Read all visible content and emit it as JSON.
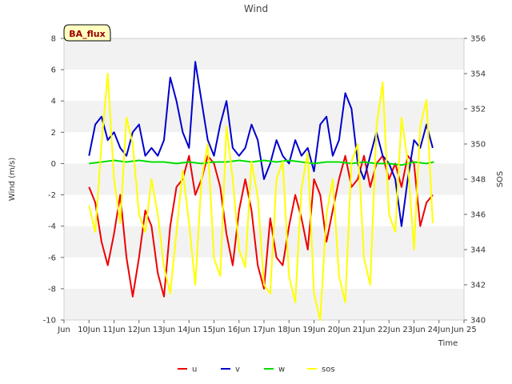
{
  "chart_data": {
    "type": "line",
    "title": "Wind",
    "xlabel": "Time",
    "ylabel": "Wind (m/s)",
    "y2label": "SOS",
    "xlim": [
      9.0,
      25.0
    ],
    "ylim": [
      -10,
      8
    ],
    "y2lim": [
      340,
      356
    ],
    "x_ticks": [
      9,
      10,
      11,
      12,
      13,
      14,
      15,
      16,
      17,
      18,
      19,
      20,
      21,
      22,
      23,
      24,
      25
    ],
    "x_tick_labels": [
      "Jun",
      "10Jun",
      "11Jun",
      "12Jun",
      "13Jun",
      "14Jun",
      "15Jun",
      "16Jun",
      "17Jun",
      "18Jun",
      "19Jun",
      "20Jun",
      "21Jun",
      "22Jun",
      "23Jun",
      "24Jun",
      "Jun 25"
    ],
    "y_ticks": [
      -10,
      -8,
      -6,
      -4,
      -2,
      0,
      2,
      4,
      6,
      8
    ],
    "y_tick_labels": [
      "-10",
      "-8",
      "-6",
      "-4",
      "-2",
      "0",
      "2",
      "4",
      "6",
      "8"
    ],
    "y2_ticks": [
      340,
      342,
      344,
      346,
      348,
      350,
      352,
      354,
      356
    ],
    "y2_tick_labels": [
      "340",
      "342",
      "344",
      "346",
      "348",
      "350",
      "352",
      "354",
      "356"
    ],
    "badge": {
      "text": "BA_flux",
      "fill": "#ffffc0",
      "text_color": "#990000"
    },
    "legend_position": "bottom-center",
    "series": [
      {
        "name": "u",
        "color": "#ee0000",
        "axis": "left",
        "x": [
          10.0,
          10.25,
          10.5,
          10.75,
          11.0,
          11.25,
          11.5,
          11.75,
          12.0,
          12.25,
          12.5,
          12.75,
          13.0,
          13.25,
          13.5,
          13.75,
          14.0,
          14.25,
          14.5,
          14.75,
          15.0,
          15.25,
          15.5,
          15.75,
          16.0,
          16.25,
          16.5,
          16.75,
          17.0,
          17.25,
          17.5,
          17.75,
          18.0,
          18.25,
          18.5,
          18.75,
          19.0,
          19.25,
          19.5,
          19.75,
          20.0,
          20.25,
          20.5,
          20.75,
          21.0,
          21.25,
          21.5,
          21.75,
          22.0,
          22.25,
          22.5,
          22.75,
          23.0,
          23.25,
          23.5,
          23.75
        ],
        "values": [
          -1.5,
          -2.5,
          -5.0,
          -6.5,
          -4.5,
          -2.0,
          -6.0,
          -8.5,
          -6.0,
          -3.0,
          -4.0,
          -7.0,
          -8.5,
          -4.0,
          -1.5,
          -1.0,
          0.5,
          -2.0,
          -1.0,
          0.5,
          0.0,
          -1.5,
          -4.5,
          -6.5,
          -3.0,
          -1.0,
          -3.0,
          -6.5,
          -8.0,
          -3.5,
          -6.0,
          -6.5,
          -4.0,
          -2.0,
          -3.5,
          -5.5,
          -1.0,
          -2.0,
          -5.0,
          -3.0,
          -1.0,
          0.5,
          -1.5,
          -1.0,
          0.5,
          -1.5,
          0.0,
          0.5,
          -1.0,
          0.0,
          -1.5,
          0.5,
          0.0,
          -4.0,
          -2.5,
          -2.0
        ]
      },
      {
        "name": "v",
        "color": "#0000cc",
        "axis": "left",
        "x": [
          10.0,
          10.25,
          10.5,
          10.75,
          11.0,
          11.25,
          11.5,
          11.75,
          12.0,
          12.25,
          12.5,
          12.75,
          13.0,
          13.25,
          13.5,
          13.75,
          14.0,
          14.25,
          14.5,
          14.75,
          15.0,
          15.25,
          15.5,
          15.75,
          16.0,
          16.25,
          16.5,
          16.75,
          17.0,
          17.25,
          17.5,
          17.75,
          18.0,
          18.25,
          18.5,
          18.75,
          19.0,
          19.25,
          19.5,
          19.75,
          20.0,
          20.25,
          20.5,
          20.75,
          21.0,
          21.25,
          21.5,
          21.75,
          22.0,
          22.25,
          22.5,
          22.75,
          23.0,
          23.25,
          23.5,
          23.75
        ],
        "values": [
          0.5,
          2.5,
          3.0,
          1.5,
          2.0,
          1.0,
          0.5,
          2.0,
          2.5,
          0.5,
          1.0,
          0.5,
          1.5,
          5.5,
          4.0,
          2.0,
          1.0,
          6.5,
          4.0,
          1.5,
          0.5,
          2.5,
          4.0,
          1.0,
          0.5,
          1.0,
          2.5,
          1.5,
          -1.0,
          0.0,
          1.5,
          0.5,
          0.0,
          1.5,
          0.5,
          1.0,
          -0.5,
          2.5,
          3.0,
          0.5,
          1.5,
          4.5,
          3.5,
          0.0,
          -1.0,
          0.5,
          2.0,
          0.5,
          0.0,
          -1.0,
          -4.0,
          -1.0,
          1.5,
          1.0,
          2.5,
          1.0
        ]
      },
      {
        "name": "w",
        "color": "#00dd00",
        "axis": "left",
        "x": [
          10.0,
          10.5,
          11.0,
          11.5,
          12.0,
          12.5,
          13.0,
          13.5,
          14.0,
          14.5,
          15.0,
          15.5,
          16.0,
          16.5,
          17.0,
          17.5,
          18.0,
          18.5,
          19.0,
          19.5,
          20.0,
          20.5,
          21.0,
          21.5,
          22.0,
          22.5,
          23.0,
          23.5,
          23.8
        ],
        "values": [
          0.0,
          0.1,
          0.2,
          0.1,
          0.2,
          0.1,
          0.1,
          0.0,
          0.1,
          0.0,
          0.1,
          0.1,
          0.2,
          0.1,
          0.2,
          0.1,
          0.2,
          0.1,
          0.0,
          0.1,
          0.1,
          0.0,
          0.1,
          0.0,
          0.0,
          -0.1,
          0.1,
          0.0,
          0.1
        ]
      },
      {
        "name": "sos",
        "color": "#ffff00",
        "axis": "right",
        "x": [
          10.0,
          10.25,
          10.5,
          10.75,
          11.0,
          11.25,
          11.5,
          11.75,
          12.0,
          12.25,
          12.5,
          12.75,
          13.0,
          13.25,
          13.5,
          13.75,
          14.0,
          14.25,
          14.5,
          14.75,
          15.0,
          15.25,
          15.5,
          15.75,
          16.0,
          16.25,
          16.5,
          16.75,
          17.0,
          17.25,
          17.5,
          17.75,
          18.0,
          18.25,
          18.5,
          18.75,
          19.0,
          19.25,
          19.5,
          19.75,
          20.0,
          20.25,
          20.5,
          20.75,
          21.0,
          21.25,
          21.5,
          21.75,
          22.0,
          22.25,
          22.5,
          22.75,
          23.0,
          23.25,
          23.5,
          23.75
        ],
        "values": [
          346.5,
          345.0,
          350.0,
          354.0,
          348.0,
          345.5,
          351.5,
          350.0,
          346.0,
          345.0,
          348.0,
          346.0,
          343.0,
          341.5,
          345.0,
          348.5,
          345.5,
          342.0,
          348.0,
          350.0,
          343.5,
          342.5,
          351.0,
          348.0,
          344.0,
          343.0,
          349.0,
          347.0,
          342.0,
          341.5,
          348.0,
          349.0,
          342.5,
          341.0,
          347.5,
          349.5,
          341.5,
          340.0,
          346.0,
          348.0,
          342.5,
          341.0,
          349.0,
          350.0,
          343.5,
          342.0,
          351.0,
          353.5,
          346.0,
          345.0,
          351.5,
          349.0,
          344.0,
          351.0,
          352.5,
          345.5
        ]
      }
    ]
  }
}
